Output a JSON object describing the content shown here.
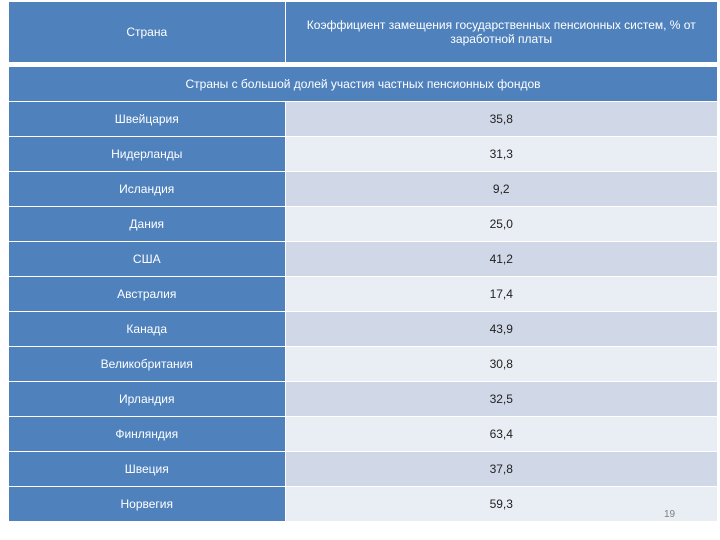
{
  "table": {
    "col_country": "Страна",
    "col_ratio": "Коэффициент замещения государственных пенсионных систем, % от заработной платы",
    "section_title": "Страны с большой долей участия частных пенсионных фондов",
    "rows": [
      {
        "country": "Швейцария",
        "value": "35,8"
      },
      {
        "country": "Нидерланды",
        "value": "31,3"
      },
      {
        "country": "Исландия",
        "value": "9,2"
      },
      {
        "country": "Дания",
        "value": "25,0"
      },
      {
        "country": "США",
        "value": "41,2"
      },
      {
        "country": "Австралия",
        "value": "17,4"
      },
      {
        "country": "Канада",
        "value": "43,9"
      },
      {
        "country": "Великобритания",
        "value": "30,8"
      },
      {
        "country": "Ирландия",
        "value": "32,5"
      },
      {
        "country": "Финляндия",
        "value": "63,4"
      },
      {
        "country": "Швеция",
        "value": "37,8"
      },
      {
        "country": "Норвегия",
        "value": "59,3"
      }
    ]
  },
  "page_number": "19",
  "colors": {
    "header_blue": "#4f81bd",
    "row_odd": "#d0d8e8",
    "row_even": "#e9edf4"
  }
}
